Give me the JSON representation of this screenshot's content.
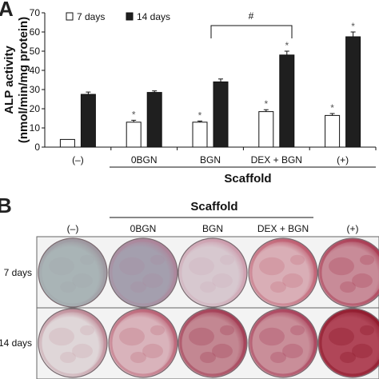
{
  "panel_a": {
    "letter": "A",
    "ylabel_line1": "ALP activity",
    "ylabel_line2": "(nmol/min/mg protein)",
    "group_label": "Scaffold",
    "significance_mark": "#",
    "legend": [
      {
        "label": "7 days",
        "color": "#ffffff"
      },
      {
        "label": "14 days",
        "color": "#1f1f1f"
      }
    ]
  },
  "chart_data": {
    "type": "bar",
    "categories": [
      "(–)",
      "0BGN",
      "BGN",
      "DEX + BGN",
      "(+)"
    ],
    "series": [
      {
        "name": "7 days",
        "values": [
          4,
          13,
          13,
          18.5,
          16.5
        ],
        "errors": [
          0,
          1,
          0.6,
          1,
          1
        ],
        "stars": [
          false,
          true,
          true,
          true,
          true
        ]
      },
      {
        "name": "14 days",
        "values": [
          27.5,
          28.5,
          34,
          48,
          57.5
        ],
        "errors": [
          1.2,
          0.8,
          1.5,
          2,
          2.5
        ],
        "stars": [
          false,
          false,
          false,
          true,
          true
        ]
      }
    ],
    "star_symbol": "*",
    "ylim": [
      0,
      70
    ],
    "yticks": [
      0,
      10,
      20,
      30,
      40,
      50,
      60,
      70
    ],
    "xlabel": "",
    "ylabel": "ALP activity (nmol/min/mg protein)"
  },
  "panel_b": {
    "letter": "B",
    "group_label": "Scaffold",
    "columns": [
      "(–)",
      "0BGN",
      "BGN",
      "DEX + BGN",
      "(+)"
    ],
    "rows": [
      {
        "label": "7 days",
        "wells": [
          {
            "base": "#a9b4b6",
            "stain": "#9b8e98",
            "intensity": 0.25
          },
          {
            "base": "#a49fae",
            "stain": "#b07c94",
            "intensity": 0.45
          },
          {
            "base": "#d7c8cf",
            "stain": "#c98ea2",
            "intensity": 0.35
          },
          {
            "base": "#d9aeb6",
            "stain": "#b9485f",
            "intensity": 0.55
          },
          {
            "base": "#c88b98",
            "stain": "#a42c46",
            "intensity": 0.7
          }
        ]
      },
      {
        "label": "14 days",
        "wells": [
          {
            "base": "#dfd6d8",
            "stain": "#b57081",
            "intensity": 0.4
          },
          {
            "base": "#d9b3bb",
            "stain": "#b34e64",
            "intensity": 0.6
          },
          {
            "base": "#c38792",
            "stain": "#9e2f49",
            "intensity": 0.75
          },
          {
            "base": "#c98e99",
            "stain": "#a43450",
            "intensity": 0.75
          },
          {
            "base": "#b04658",
            "stain": "#8c1629",
            "intensity": 0.9
          }
        ]
      }
    ]
  }
}
